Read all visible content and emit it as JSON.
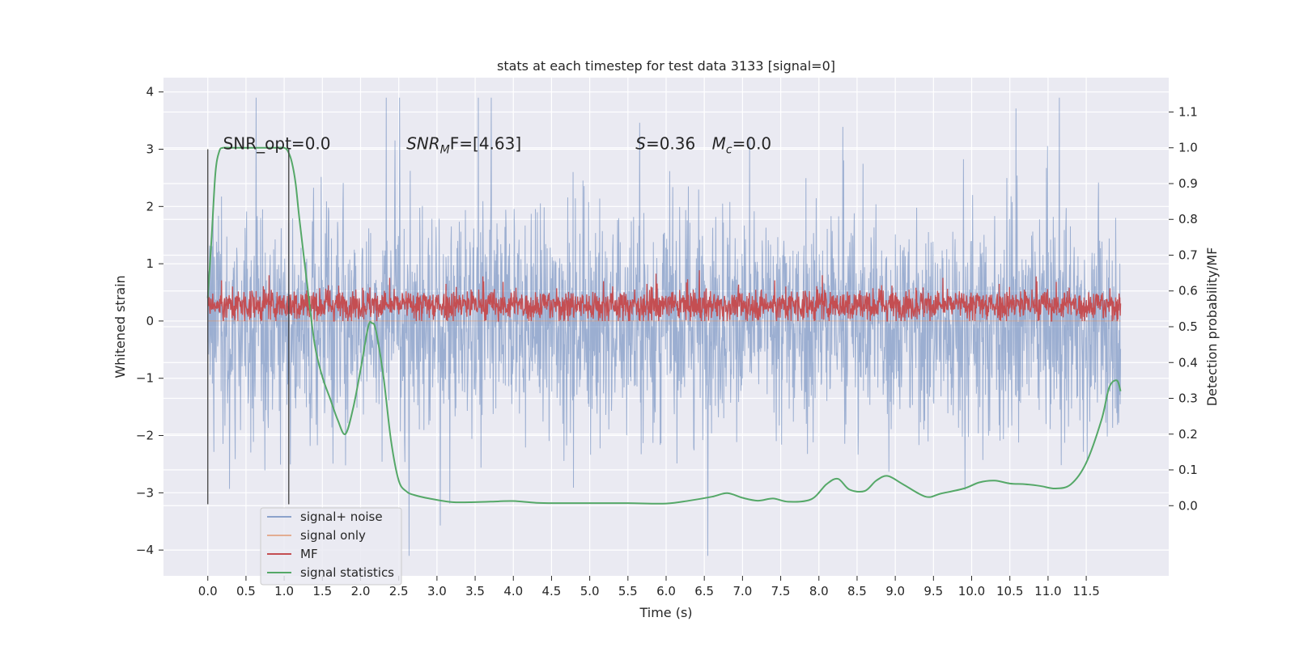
{
  "chart_data": {
    "type": "line",
    "title": "stats at each timestep for test data 3133 [signal=0]",
    "xlabel": "Time (s)",
    "ylabel": "Whitened strain",
    "ylabel_right": "Detection probability/MF",
    "xlim": [
      -0.58,
      12.58
    ],
    "ylim": [
      -4.45,
      4.25
    ],
    "ylim_right": [
      -0.196,
      1.196
    ],
    "x_ticks": [
      0.0,
      0.5,
      1.0,
      1.5,
      2.0,
      2.5,
      3.0,
      3.5,
      4.0,
      4.5,
      5.0,
      5.5,
      6.0,
      6.5,
      7.0,
      7.5,
      8.0,
      8.5,
      9.0,
      9.5,
      10.0,
      10.5,
      11.0,
      11.5
    ],
    "x_tick_labels": [
      "0.0",
      "0.5",
      "1.0",
      "1.5",
      "2.0",
      "2.5",
      "3.0",
      "3.5",
      "4.0",
      "4.5",
      "5.0",
      "5.5",
      "6.0",
      "6.5",
      "7.0",
      "7.5",
      "8.0",
      "8.5",
      "9.0",
      "9.5",
      "10.0",
      "10.5",
      "11.0",
      "11.5"
    ],
    "y_ticks": [
      -4,
      -3,
      -2,
      -1,
      0,
      1,
      2,
      3,
      4
    ],
    "y_tick_labels": [
      "−4",
      "−3",
      "−2",
      "−1",
      "0",
      "1",
      "2",
      "3",
      "4"
    ],
    "y_right_ticks": [
      0.0,
      0.1,
      0.2,
      0.3,
      0.4,
      0.5,
      0.6,
      0.7,
      0.8,
      0.9,
      1.0,
      1.1
    ],
    "y_right_tick_labels": [
      "0.0",
      "0.1",
      "0.2",
      "0.3",
      "0.4",
      "0.5",
      "0.6",
      "0.7",
      "0.8",
      "0.9",
      "1.0",
      "1.1"
    ],
    "grid": true,
    "legend_position": "lower-left",
    "vertical_markers": [
      {
        "x": 0.0,
        "y_range": [
          -3.2,
          3.0
        ]
      },
      {
        "x": 1.06,
        "y_range": [
          -3.2,
          3.0
        ]
      }
    ],
    "annotations": [
      {
        "text_main": "SNR_opt=0.0",
        "x": 0.2,
        "y": 3.0
      },
      {
        "text_main": "SNR",
        "subscript": "M",
        "tail": "F=[4.63]",
        "italic": true,
        "x": 2.6,
        "y": 3.0
      },
      {
        "text_main": "S",
        "tail": "=0.36",
        "italic": true,
        "x": 5.6,
        "y": 3.0
      },
      {
        "text_main": "M",
        "subscript": "c",
        "tail": "=0.0",
        "italic": true,
        "x": 6.6,
        "y": 3.0
      }
    ],
    "series": [
      {
        "name": "signal+ noise",
        "color": "#4c72b0",
        "alpha": 0.5,
        "axis": "left",
        "kind": "noise-trace",
        "x_range": [
          0.0,
          11.95
        ],
        "samples": 2400,
        "typical_range": [
          -1.7,
          1.7
        ],
        "extreme_range": [
          -4.1,
          3.9
        ]
      },
      {
        "name": "signal only",
        "color": "#dd8452",
        "alpha": 0.5,
        "axis": "left",
        "values_constant": 0.0,
        "x_range": [
          0.0,
          11.95
        ]
      },
      {
        "name": "MF",
        "color": "#c44e52",
        "axis": "left",
        "kind": "noise-trace",
        "x_range": [
          0.0,
          11.95
        ],
        "samples": 2400,
        "typical_range": [
          0.05,
          0.55
        ],
        "extreme_range": [
          0.0,
          1.0
        ]
      },
      {
        "name": "signal statistics",
        "color": "#55a868",
        "axis": "right",
        "x": [
          0.0,
          0.05,
          0.1,
          0.15,
          0.2,
          0.3,
          0.5,
          0.7,
          0.9,
          1.0,
          1.05,
          1.1,
          1.15,
          1.2,
          1.3,
          1.4,
          1.5,
          1.6,
          1.7,
          1.8,
          1.9,
          2.0,
          2.1,
          2.15,
          2.2,
          2.3,
          2.4,
          2.5,
          2.6,
          2.7,
          2.9,
          3.2,
          3.5,
          3.8,
          4.0,
          4.3,
          4.6,
          5.0,
          5.5,
          6.0,
          6.3,
          6.6,
          6.8,
          7.0,
          7.2,
          7.4,
          7.6,
          7.9,
          8.1,
          8.25,
          8.4,
          8.6,
          8.75,
          8.9,
          9.1,
          9.4,
          9.6,
          9.9,
          10.1,
          10.3,
          10.5,
          10.7,
          10.9,
          11.1,
          11.3,
          11.5,
          11.7,
          11.8,
          11.9,
          11.95
        ],
        "y": [
          0.58,
          0.75,
          0.93,
          0.99,
          1.0,
          1.0,
          1.0,
          1.0,
          1.0,
          1.0,
          0.99,
          0.96,
          0.9,
          0.8,
          0.62,
          0.45,
          0.36,
          0.3,
          0.24,
          0.2,
          0.27,
          0.38,
          0.5,
          0.51,
          0.49,
          0.36,
          0.18,
          0.07,
          0.04,
          0.03,
          0.02,
          0.01,
          0.01,
          0.012,
          0.013,
          0.008,
          0.007,
          0.007,
          0.007,
          0.006,
          0.014,
          0.025,
          0.035,
          0.022,
          0.014,
          0.02,
          0.011,
          0.018,
          0.06,
          0.075,
          0.045,
          0.041,
          0.07,
          0.083,
          0.06,
          0.025,
          0.034,
          0.048,
          0.065,
          0.07,
          0.062,
          0.06,
          0.055,
          0.048,
          0.06,
          0.12,
          0.24,
          0.33,
          0.35,
          0.32
        ]
      }
    ]
  }
}
